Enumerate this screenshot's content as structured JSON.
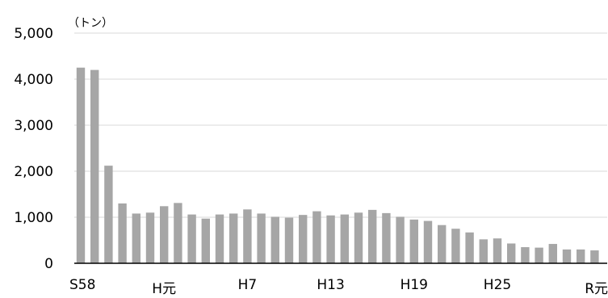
{
  "chart_data": {
    "type": "bar",
    "title": "",
    "unit_label": "（トン）",
    "xlabel": "",
    "ylabel": "",
    "ylim": [
      0,
      5000
    ],
    "y_ticks": [
      "0",
      "1,000",
      "2,000",
      "3,000",
      "4,000",
      "5,000"
    ],
    "y_tick_values": [
      0,
      1000,
      2000,
      3000,
      4000,
      5000
    ],
    "x_tick_labels": [
      {
        "index": 0,
        "label": "S58"
      },
      {
        "index": 6,
        "label": "H元"
      },
      {
        "index": 12,
        "label": "H7"
      },
      {
        "index": 18,
        "label": "H13"
      },
      {
        "index": 24,
        "label": "H19"
      },
      {
        "index": 30,
        "label": "H25"
      },
      {
        "index": 36,
        "label": "R元"
      }
    ],
    "grid": true,
    "bar_color": "#a6a6a6",
    "values": [
      4250,
      4200,
      2120,
      1300,
      1080,
      1100,
      1240,
      1310,
      1060,
      970,
      1060,
      1080,
      1170,
      1080,
      1010,
      990,
      1050,
      1130,
      1040,
      1060,
      1100,
      1160,
      1090,
      1010,
      950,
      920,
      830,
      750,
      670,
      520,
      540,
      430,
      350,
      340,
      420,
      300,
      300,
      280
    ]
  }
}
